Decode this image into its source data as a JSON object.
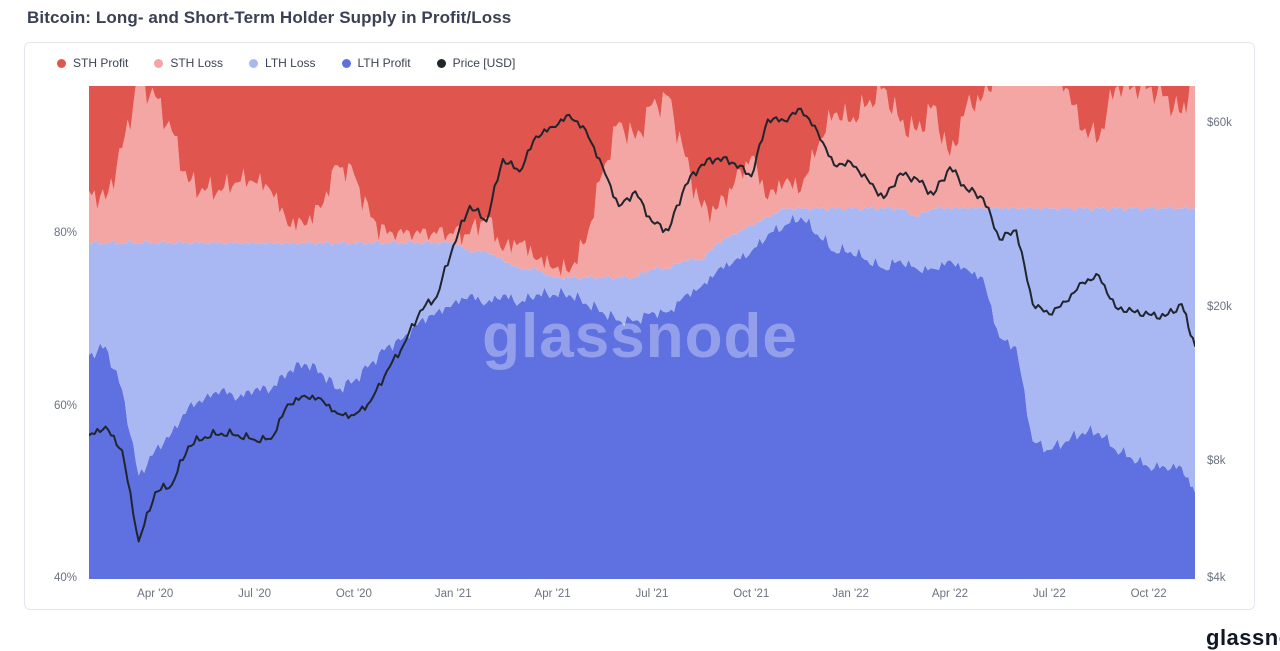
{
  "title": "Bitcoin: Long- and Short-Term Holder Supply in Profit/Loss",
  "watermark": "glassnode",
  "partial_logo_text": "glassnode",
  "legend": [
    {
      "label": "STH Profit",
      "color": "#e0554d"
    },
    {
      "label": "STH Loss",
      "color": "#f3a6a4"
    },
    {
      "label": "LTH Loss",
      "color": "#a9b8f3"
    },
    {
      "label": "LTH Profit",
      "color": "#5f71e0"
    },
    {
      "label": "Price [USD]",
      "color": "#20252e"
    }
  ],
  "chart_data": {
    "type": "area",
    "subtype": "stacked-percent-of-supply with log-scale price line overlay",
    "title": "Bitcoin: Long- and Short-Term Holder Supply in Profit/Loss",
    "grid": false,
    "legend_position": "top-left",
    "x_unit": "months since 2020-02-01 (0 = Feb 2020, last point = mid-Nov 2022)",
    "x": [
      0,
      0.5,
      1,
      1.5,
      2,
      2.5,
      3,
      3.5,
      4,
      4.5,
      5,
      5.5,
      6,
      6.5,
      7,
      7.5,
      8,
      8.5,
      9,
      9.5,
      10,
      10.5,
      11,
      11.5,
      12,
      12.5,
      13,
      13.5,
      14,
      14.5,
      15,
      15.5,
      16,
      16.5,
      17,
      17.5,
      18,
      18.5,
      19,
      19.5,
      20,
      20.5,
      21,
      21.5,
      22,
      22.5,
      23,
      23.5,
      24,
      24.5,
      25,
      25.5,
      26,
      26.5,
      27,
      27.5,
      28,
      28.5,
      29,
      29.5,
      30,
      30.5,
      31,
      31.5,
      32,
      32.5,
      33,
      33.4
    ],
    "series": [
      {
        "name": "LTH Profit",
        "color": "#5f71e0",
        "values": [
          66,
          67,
          62,
          52,
          55,
          57,
          60,
          61,
          62,
          61,
          62,
          62,
          64,
          65,
          64,
          62,
          63,
          65,
          67,
          68,
          70,
          71,
          72,
          73,
          72,
          73,
          72,
          73,
          73,
          73,
          72,
          71,
          70,
          70,
          71,
          71,
          73,
          74,
          76,
          77,
          78,
          80,
          81,
          82,
          80,
          78,
          78,
          77,
          76,
          77,
          76,
          76,
          77,
          76,
          75,
          68,
          67,
          56,
          55,
          56,
          57,
          57,
          55,
          54,
          53,
          53,
          53,
          50
        ]
      },
      {
        "name": "LTH Loss",
        "color": "#a9b8f3",
        "values": [
          13,
          12,
          17,
          27,
          24,
          22,
          19,
          18,
          17,
          18,
          17,
          17,
          15,
          14,
          15,
          17,
          16,
          14,
          12,
          11,
          9,
          8,
          7,
          5,
          6,
          4,
          4,
          3,
          2,
          2,
          3,
          4,
          5,
          5,
          5,
          5,
          4,
          3,
          3,
          3,
          3,
          2,
          2,
          1,
          3,
          5,
          5,
          6,
          7,
          6,
          6,
          7,
          6,
          7,
          8,
          15,
          16,
          27,
          28,
          27,
          26,
          26,
          28,
          29,
          30,
          30,
          30,
          33
        ]
      },
      {
        "name": "STH Loss",
        "color": "#f3a6a4",
        "values": [
          6,
          5,
          11,
          19,
          17,
          13,
          7,
          6,
          6,
          7,
          7,
          6,
          2,
          2,
          4,
          9,
          8,
          3,
          1,
          1,
          1,
          1,
          1,
          2,
          4,
          1,
          3,
          1,
          1,
          0.5,
          4,
          12,
          18,
          16,
          19,
          20,
          12,
          6,
          4,
          6,
          8,
          2,
          3,
          2,
          7,
          11,
          10,
          12,
          14,
          10,
          10,
          12,
          6,
          12,
          13,
          16,
          15,
          16,
          16,
          14,
          9,
          8,
          14,
          14,
          14,
          13,
          11,
          16
        ]
      },
      {
        "name": "STH Profit",
        "color": "#e0554d",
        "values": [
          15,
          16,
          10,
          2,
          4,
          8,
          14,
          15,
          15,
          14,
          14,
          15,
          19,
          19,
          17,
          12,
          13,
          18,
          20,
          20,
          20,
          20,
          20,
          20,
          18,
          22,
          21,
          23,
          24,
          24.5,
          21,
          13,
          7,
          9,
          5,
          4,
          11,
          17,
          17,
          14,
          11,
          16,
          14,
          15,
          10,
          6,
          7,
          5,
          3,
          7,
          8,
          5,
          11,
          5,
          4,
          1,
          2,
          1,
          1,
          3,
          8,
          9,
          3,
          3,
          3,
          4,
          6,
          1
        ]
      }
    ],
    "price_series": {
      "name": "Price [USD]",
      "color": "#20252e",
      "scale": "log",
      "values": [
        9400,
        9900,
        8600,
        5000,
        6700,
        7000,
        8800,
        9300,
        9500,
        9400,
        9150,
        9200,
        11300,
        11900,
        11700,
        10700,
        10600,
        11500,
        13800,
        16100,
        19700,
        21400,
        29000,
        36800,
        33500,
        48600,
        45100,
        55600,
        58800,
        63200,
        57800,
        46700,
        36700,
        40100,
        33500,
        31800,
        41500,
        47000,
        48800,
        47300,
        43800,
        61500,
        61000,
        65500,
        57200,
        46900,
        47700,
        43200,
        38500,
        44600,
        43200,
        39300,
        46300,
        40600,
        38500,
        30100,
        31800,
        20500,
        19300,
        20800,
        23300,
        24300,
        20100,
        19700,
        19300,
        19100,
        20500,
        16000
      ]
    },
    "y_left_axis": {
      "unit": "%",
      "domain": [
        40,
        97.2
      ],
      "ticks": [
        {
          "v": 80,
          "label": "80%"
        },
        {
          "v": 60,
          "label": "60%"
        },
        {
          "v": 40,
          "label": "40%"
        }
      ]
    },
    "y_right_axis": {
      "unit": "USD",
      "scale": "log",
      "domain": [
        4000,
        75000
      ],
      "ticks": [
        {
          "v": 60000,
          "label": "$60k"
        },
        {
          "v": 20000,
          "label": "$20k"
        },
        {
          "v": 8000,
          "label": "$8k"
        },
        {
          "v": 4000,
          "label": "$4k"
        }
      ]
    },
    "x_axis": {
      "ticks": [
        {
          "t": 2,
          "label": "Apr '20"
        },
        {
          "t": 5,
          "label": "Jul '20"
        },
        {
          "t": 8,
          "label": "Oct '20"
        },
        {
          "t": 11,
          "label": "Jan '21"
        },
        {
          "t": 14,
          "label": "Apr '21"
        },
        {
          "t": 17,
          "label": "Jul '21"
        },
        {
          "t": 20,
          "label": "Oct '21"
        },
        {
          "t": 23,
          "label": "Jan '22"
        },
        {
          "t": 26,
          "label": "Apr '22"
        },
        {
          "t": 29,
          "label": "Jul '22"
        },
        {
          "t": 32,
          "label": "Oct '22"
        }
      ]
    }
  }
}
